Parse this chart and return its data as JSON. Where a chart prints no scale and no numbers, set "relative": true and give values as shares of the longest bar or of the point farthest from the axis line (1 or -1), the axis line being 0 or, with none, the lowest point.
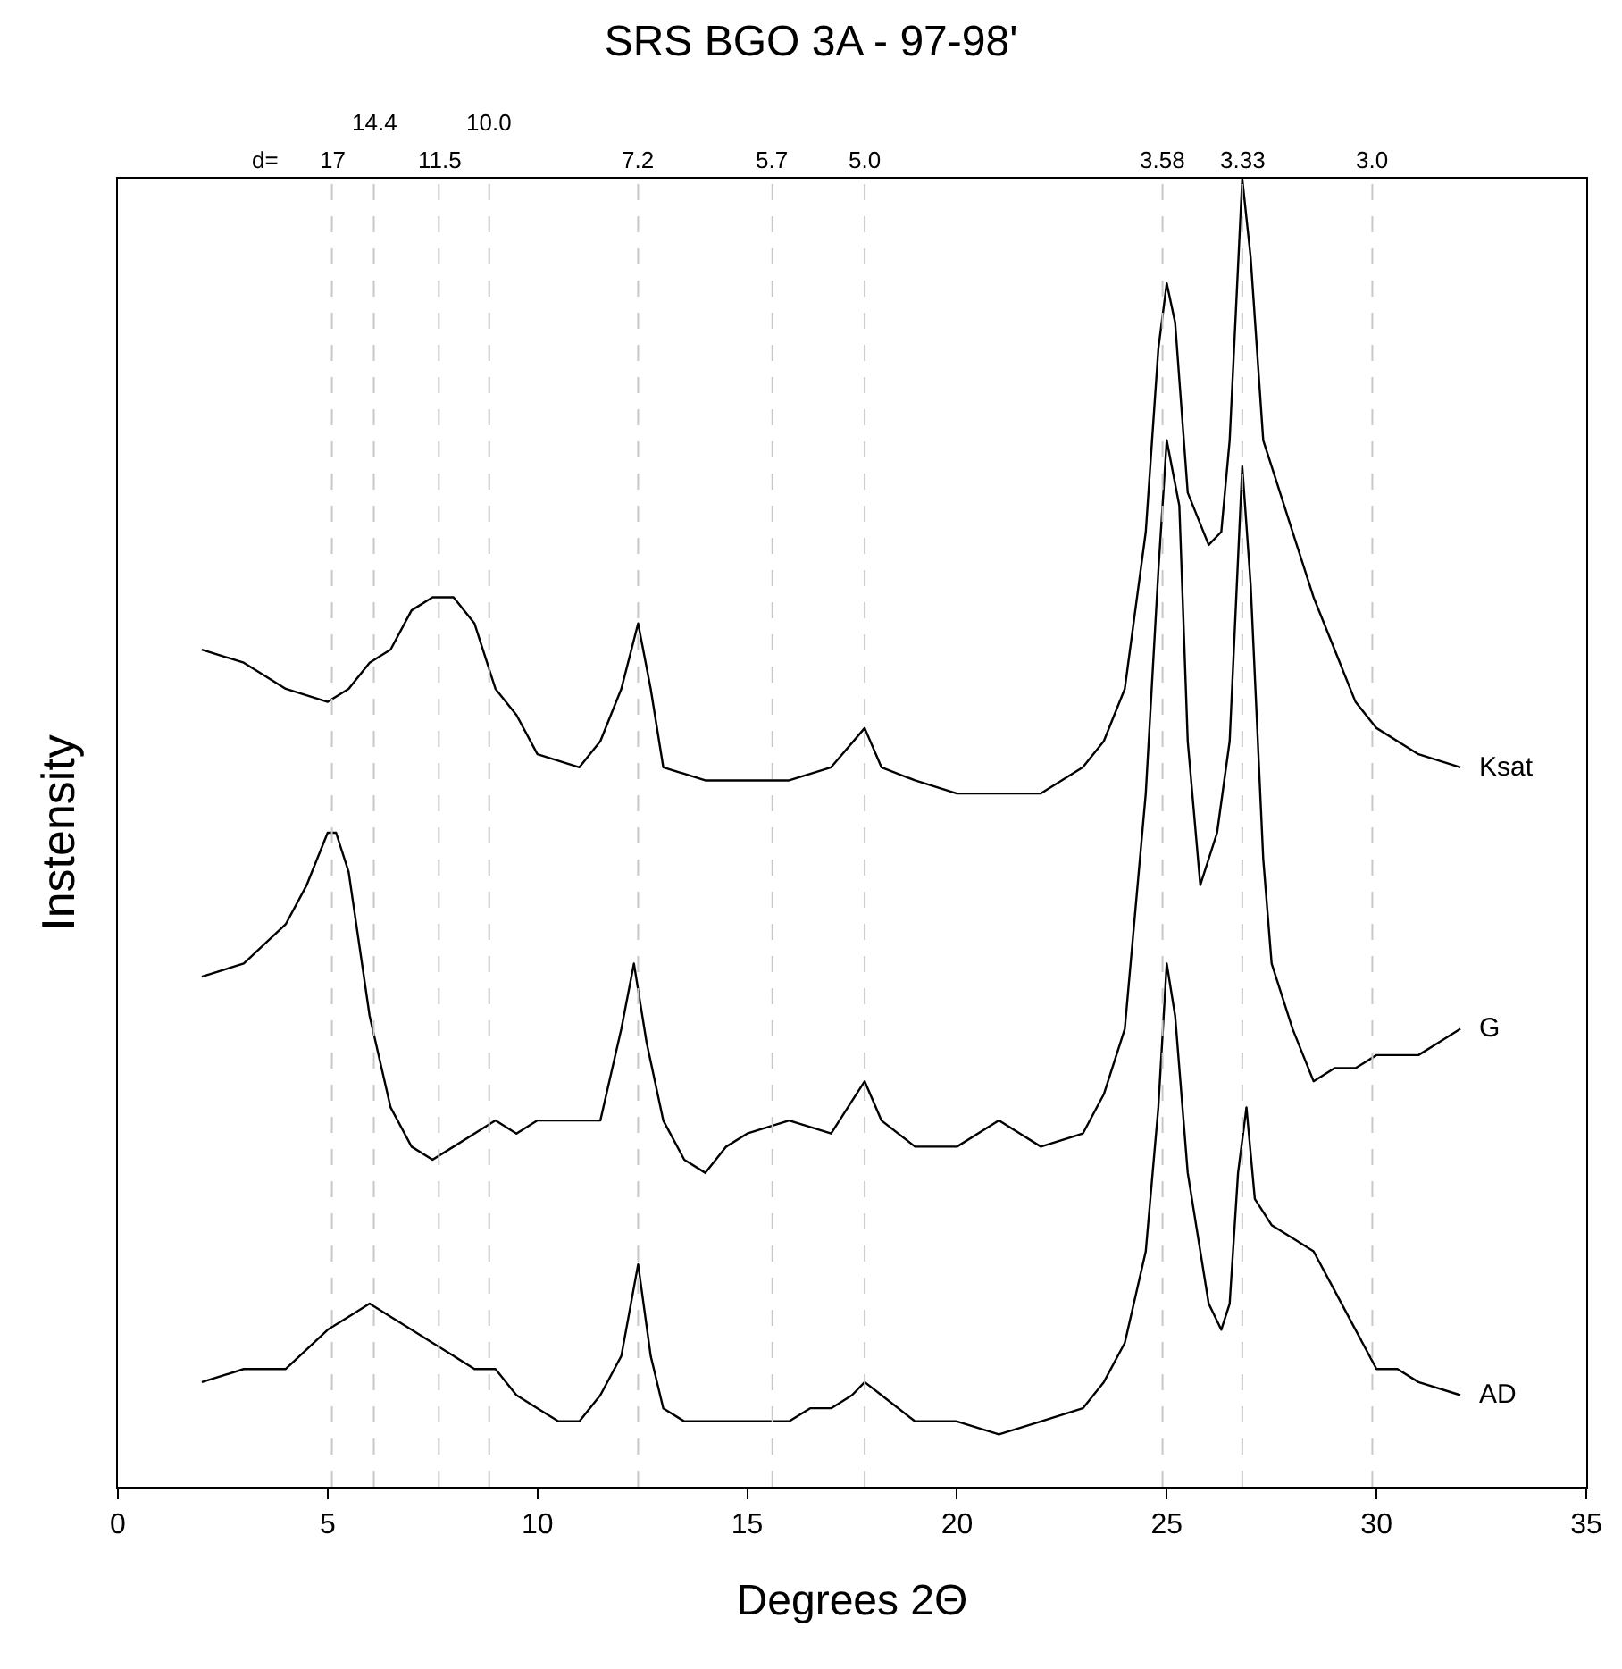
{
  "chart_data": {
    "type": "line",
    "title": "SRS BGO 3A - 97-98'",
    "xlabel": "Degrees 2Θ",
    "ylabel": "Instensity",
    "relative": true,
    "xlim": [
      0,
      35
    ],
    "xticks": [
      0,
      5,
      10,
      15,
      20,
      25,
      30,
      35
    ],
    "legend": false,
    "marker": "none",
    "line_style": "solid",
    "annotations": [
      "d=",
      "17",
      "14.4",
      "11.5",
      "10.0",
      "7.2",
      "5.7",
      "5.0",
      "3.58",
      "3.33",
      "3.0"
    ],
    "ref_lines": [
      {
        "axis": "x",
        "value": 5.1,
        "color": "#c8c8c8",
        "line_style": "dashed"
      },
      {
        "axis": "x",
        "value": 6.1,
        "color": "#c8c8c8",
        "line_style": "dashed"
      },
      {
        "axis": "x",
        "value": 7.65,
        "color": "#c8c8c8",
        "line_style": "dashed"
      },
      {
        "axis": "x",
        "value": 8.85,
        "color": "#c8c8c8",
        "line_style": "dashed"
      },
      {
        "axis": "x",
        "value": 12.4,
        "color": "#c8c8c8",
        "line_style": "dashed"
      },
      {
        "axis": "x",
        "value": 15.6,
        "color": "#c8c8c8",
        "line_style": "dashed"
      },
      {
        "axis": "x",
        "value": 17.8,
        "color": "#c8c8c8",
        "line_style": "dashed"
      },
      {
        "axis": "x",
        "value": 24.9,
        "color": "#c8c8c8",
        "line_style": "dashed"
      },
      {
        "axis": "x",
        "value": 26.8,
        "color": "#c8c8c8",
        "line_style": "dashed"
      },
      {
        "axis": "x",
        "value": 29.9,
        "color": "#c8c8c8",
        "line_style": "dashed"
      }
    ],
    "series": [
      {
        "name": "AD",
        "color": "#000000",
        "x": [
          2,
          3,
          4,
          5,
          5.5,
          6,
          6.5,
          7,
          7.5,
          8,
          8.5,
          9,
          9.5,
          10,
          10.5,
          11,
          11.5,
          12,
          12.4,
          12.7,
          13,
          13.5,
          14,
          15,
          16,
          16.5,
          17,
          17.5,
          17.8,
          18.2,
          19,
          20,
          21,
          22,
          23,
          23.5,
          24,
          24.5,
          24.8,
          25,
          25.2,
          25.5,
          26,
          26.3,
          26.5,
          26.7,
          26.9,
          27.1,
          27.5,
          28,
          28.5,
          29,
          29.5,
          30,
          30.5,
          31,
          32
        ],
        "values": [
          0.08,
          0.09,
          0.09,
          0.12,
          0.13,
          0.14,
          0.13,
          0.12,
          0.11,
          0.1,
          0.09,
          0.09,
          0.07,
          0.06,
          0.05,
          0.05,
          0.07,
          0.1,
          0.17,
          0.1,
          0.06,
          0.05,
          0.05,
          0.05,
          0.05,
          0.06,
          0.06,
          0.07,
          0.08,
          0.07,
          0.05,
          0.05,
          0.04,
          0.05,
          0.06,
          0.08,
          0.11,
          0.18,
          0.29,
          0.4,
          0.36,
          0.24,
          0.14,
          0.12,
          0.14,
          0.24,
          0.29,
          0.22,
          0.2,
          0.19,
          0.18,
          0.15,
          0.12,
          0.09,
          0.09,
          0.08,
          0.07
        ]
      },
      {
        "name": "G",
        "color": "#000000",
        "x": [
          2,
          3,
          4,
          4.5,
          5,
          5.2,
          5.5,
          6,
          6.5,
          7,
          7.5,
          8,
          9,
          9.5,
          10,
          11,
          11.5,
          12,
          12.3,
          12.6,
          13,
          13.5,
          14,
          14.5,
          15,
          16,
          17,
          17.8,
          18.2,
          19,
          20,
          21,
          22,
          23,
          23.5,
          24,
          24.5,
          24.8,
          25,
          25.3,
          25.5,
          25.8,
          26.2,
          26.5,
          26.8,
          27,
          27.3,
          27.5,
          28,
          28.5,
          29,
          29.5,
          30,
          30.5,
          31,
          31.5,
          32
        ],
        "values": [
          0.39,
          0.4,
          0.43,
          0.46,
          0.5,
          0.5,
          0.47,
          0.36,
          0.29,
          0.26,
          0.25,
          0.26,
          0.28,
          0.27,
          0.28,
          0.28,
          0.28,
          0.35,
          0.4,
          0.34,
          0.28,
          0.25,
          0.24,
          0.26,
          0.27,
          0.28,
          0.27,
          0.31,
          0.28,
          0.26,
          0.26,
          0.28,
          0.26,
          0.27,
          0.3,
          0.35,
          0.53,
          0.7,
          0.8,
          0.75,
          0.57,
          0.46,
          0.5,
          0.57,
          0.78,
          0.69,
          0.48,
          0.4,
          0.35,
          0.31,
          0.32,
          0.32,
          0.33,
          0.33,
          0.33,
          0.34,
          0.35
        ]
      },
      {
        "name": "Ksat",
        "color": "#000000",
        "x": [
          2,
          3,
          4,
          5,
          5.5,
          6,
          6.5,
          7,
          7.5,
          8,
          8.5,
          9,
          9.5,
          10,
          11,
          11.5,
          12,
          12.4,
          12.7,
          13,
          14,
          15,
          16,
          17,
          17.8,
          18.2,
          19,
          20,
          21,
          22,
          23,
          23.5,
          24,
          24.5,
          24.8,
          25,
          25.2,
          25.5,
          26,
          26.3,
          26.5,
          26.8,
          27,
          27.3,
          27.6,
          28,
          28.5,
          29,
          29.5,
          30,
          31,
          32
        ],
        "values": [
          0.64,
          0.63,
          0.61,
          0.6,
          0.61,
          0.63,
          0.64,
          0.67,
          0.68,
          0.68,
          0.66,
          0.61,
          0.59,
          0.56,
          0.55,
          0.57,
          0.61,
          0.66,
          0.61,
          0.55,
          0.54,
          0.54,
          0.54,
          0.55,
          0.58,
          0.55,
          0.54,
          0.53,
          0.53,
          0.53,
          0.55,
          0.57,
          0.61,
          0.73,
          0.87,
          0.92,
          0.89,
          0.76,
          0.72,
          0.73,
          0.8,
          1.0,
          0.94,
          0.8,
          0.77,
          0.73,
          0.68,
          0.64,
          0.6,
          0.58,
          0.56,
          0.55
        ]
      }
    ]
  }
}
